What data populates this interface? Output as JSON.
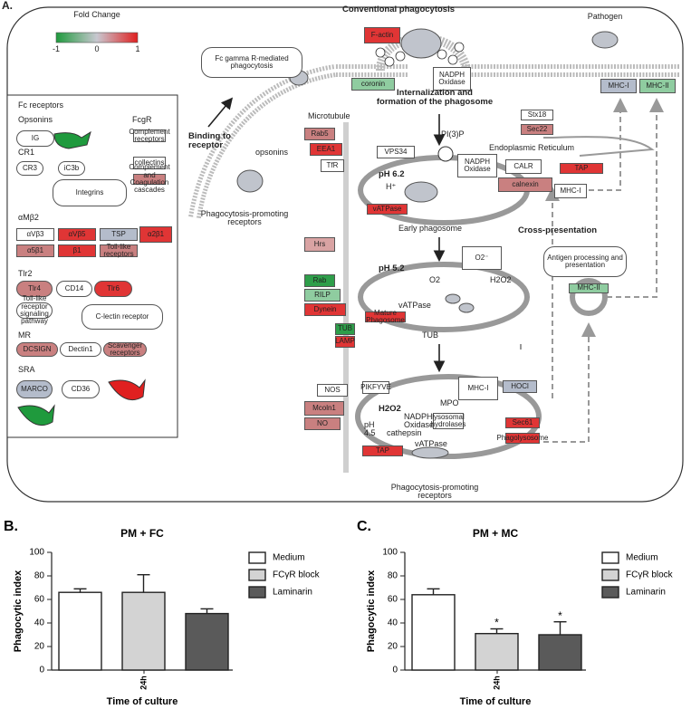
{
  "panel_label": "A.",
  "diagram": {
    "labels": [
      "A.",
      "Fold Change",
      "-1",
      "0",
      "1",
      "Conventional phagocytosis",
      "Pathogen",
      "F-actin",
      "Fc gamma R-mediated phagocytosis",
      "NADPH Oxidase",
      "coronin",
      "Internalization and formation of the phagosome",
      "Microtubule",
      "Binding to receptor",
      "opsonins",
      "Phagocytosis-promoting receptors",
      "Rab5",
      "EEA1",
      "TfR",
      "VPS34",
      "PI(3)P",
      "NADPH Oxidase",
      "pH 6.2",
      "H⁺",
      "vATPase",
      "Early phagosome",
      "CALR",
      "calnexin",
      "MHC-I",
      "TAP",
      "Stx18",
      "Sec22",
      "Endoplasmic Reticulum",
      "MHC-I",
      "MHC-II",
      "Cross-presentation",
      "Antigen processing and presentation",
      "MHC-II",
      "Hrs",
      "Rab",
      "RILP",
      "Dynein",
      "pH 5.2",
      "O2⁻",
      "O2",
      "H2O2",
      "vATPase",
      "Mature Phagosome",
      "TUB",
      "TUB",
      "LAMP",
      "NOS",
      "PIKFYVE",
      "Mcoln1",
      "NO",
      "pH 4.5",
      "H2O2",
      "NADPH Oxidase",
      "MHC-I",
      "HOCl",
      "MPO",
      "lysosomal hydrolases",
      "cathepsin",
      "vATPase",
      "TAP",
      "Sec61",
      "Phagolysosome",
      "Phagocytosis-promoting receptors",
      "Fc receptors",
      "Opsonins",
      "FcgR",
      "IG",
      "Complement receptors",
      "CR1",
      "CR3",
      "iC3b",
      "collectins",
      "Complement and Coagulation cascades",
      "Integrins",
      "αMβ2",
      "αVβ3",
      "αVβ5",
      "TSP",
      "α2β1",
      "α5β1",
      "β1",
      "Toll-like receptors",
      "Tlr2",
      "Tlr4",
      "CD14",
      "Tlr6",
      "Toll-like receptor signaling pathway",
      "C-lectin receptor",
      "MR",
      "DCSIGN",
      "Dectin1",
      "Scavenger receptors",
      "SRA",
      "MARCO",
      "CD36"
    ]
  },
  "chart_data": [
    {
      "type": "bar",
      "panel": "B.",
      "title": "PM + FC",
      "x_label": "Time of culture",
      "y_label": "Phagocytic index",
      "categories": [
        "24h"
      ],
      "series": [
        {
          "name": "Medium",
          "color": "#ffffff",
          "values": [
            66
          ],
          "errors": [
            3
          ]
        },
        {
          "name": "FCγR block",
          "color": "#d3d3d3",
          "values": [
            66
          ],
          "errors": [
            15
          ]
        },
        {
          "name": "Laminarin",
          "color": "#5a5a5a",
          "values": [
            48
          ],
          "errors": [
            4
          ]
        }
      ],
      "ylim": [
        0,
        100
      ],
      "yticks": [
        0,
        20,
        40,
        60,
        80,
        100
      ]
    },
    {
      "type": "bar",
      "panel": "C.",
      "title": "PM + MC",
      "x_label": "Time of culture",
      "y_label": "Phagocytic index",
      "categories": [
        "24h"
      ],
      "series": [
        {
          "name": "Medium",
          "color": "#ffffff",
          "values": [
            64
          ],
          "errors": [
            5
          ]
        },
        {
          "name": "FCγR block",
          "color": "#d3d3d3",
          "values": [
            31
          ],
          "errors": [
            4
          ],
          "significance": [
            "*"
          ]
        },
        {
          "name": "Laminarin",
          "color": "#5a5a5a",
          "values": [
            30
          ],
          "errors": [
            11
          ],
          "significance": [
            "*"
          ]
        }
      ],
      "ylim": [
        0,
        100
      ],
      "yticks": [
        0,
        20,
        40,
        60,
        80,
        100
      ]
    }
  ]
}
